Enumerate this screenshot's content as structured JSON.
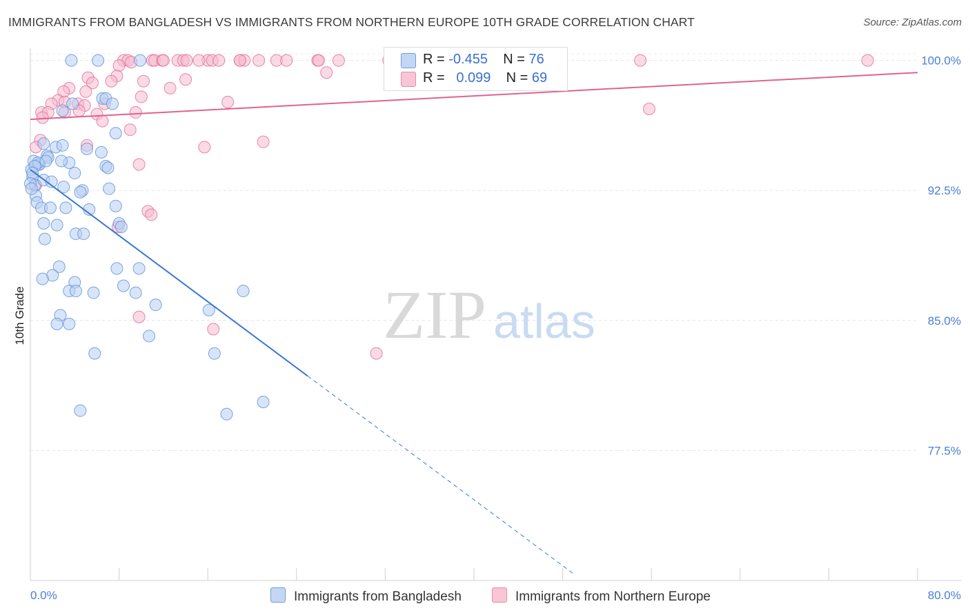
{
  "title": "IMMIGRANTS FROM BANGLADESH VS IMMIGRANTS FROM NORTHERN EUROPE 10TH GRADE CORRELATION CHART",
  "source": "Source: ZipAtlas.com",
  "watermark": {
    "zip": "ZIP",
    "atlas": "atlas"
  },
  "colors": {
    "blue": "#5b8fd9",
    "blue_fill": "#b8d0f2",
    "pink": "#e46a94",
    "pink_fill": "#f6bccd",
    "axis_text": "#4a7fd4"
  },
  "legend": {
    "rows": [
      {
        "r_label": "R =",
        "r_value": "-0.455",
        "n_label": "N =",
        "n_value": "76"
      },
      {
        "r_label": "R =",
        "r_value": "0.099",
        "n_label": "N =",
        "n_value": "69"
      }
    ]
  },
  "bottom_legend": {
    "series1": "Immigrants from Bangladesh",
    "series2": "Immigrants from Northern Europe"
  },
  "chart_data": {
    "type": "scatter",
    "title": "IMMIGRANTS FROM BANGLADESH VS IMMIGRANTS FROM NORTHERN EUROPE 10TH GRADE CORRELATION CHART",
    "xlabel": "",
    "ylabel": "10th Grade",
    "xlim": [
      0,
      80
    ],
    "ylim": [
      70,
      100.7
    ],
    "x_tick_labels": [
      "0.0%",
      "80.0%"
    ],
    "y_ticks": [
      77.5,
      85.0,
      92.5,
      100.0
    ],
    "y_tick_labels": [
      "77.5%",
      "85.0%",
      "92.5%",
      "100.0%"
    ],
    "series": [
      {
        "name": "Immigrants from Bangladesh",
        "r": -0.455,
        "n": 76,
        "trend": {
          "x0": 0,
          "y0": 93.7,
          "x1": 25,
          "y1": 81.8,
          "dash_to_x": 49
        },
        "points": [
          [
            3.7,
            100
          ],
          [
            6.1,
            100
          ],
          [
            9.9,
            100
          ],
          [
            0.1,
            93.7
          ],
          [
            0.3,
            94.2
          ],
          [
            0.2,
            93.3
          ],
          [
            0.4,
            92.8
          ],
          [
            0.8,
            94.0
          ],
          [
            1.2,
            95.2
          ],
          [
            1.5,
            94.5
          ],
          [
            2.3,
            95.0
          ],
          [
            2.9,
            95.1
          ],
          [
            0.5,
            92.2
          ],
          [
            0.6,
            91.8
          ],
          [
            1.0,
            91.5
          ],
          [
            1.8,
            91.5
          ],
          [
            3.2,
            91.5
          ],
          [
            4.0,
            93.5
          ],
          [
            1.2,
            90.6
          ],
          [
            2.4,
            90.5
          ],
          [
            1.3,
            89.7
          ],
          [
            4.1,
            90.0
          ],
          [
            4.8,
            90.0
          ],
          [
            4.7,
            92.5
          ],
          [
            4.5,
            92.4
          ],
          [
            5.3,
            91.4
          ],
          [
            6.8,
            93.9
          ],
          [
            7.0,
            93.8
          ],
          [
            7.1,
            92.6
          ],
          [
            7.7,
            91.6
          ],
          [
            8.0,
            90.6
          ],
          [
            8.2,
            90.4
          ],
          [
            6.5,
            97.8
          ],
          [
            6.8,
            97.8
          ],
          [
            7.4,
            97.5
          ],
          [
            3.8,
            97.5
          ],
          [
            2.9,
            97.1
          ],
          [
            7.7,
            95.8
          ],
          [
            6.4,
            94.7
          ],
          [
            0.8,
            94.0
          ],
          [
            1.6,
            94.4
          ],
          [
            3.5,
            94.1
          ],
          [
            2.8,
            94.2
          ],
          [
            1.2,
            93.1
          ],
          [
            1.9,
            93.0
          ],
          [
            3.0,
            92.7
          ],
          [
            0.7,
            94.1
          ],
          [
            0.4,
            93.9
          ],
          [
            0.2,
            93.5
          ],
          [
            7.8,
            88.0
          ],
          [
            9.8,
            88.0
          ],
          [
            2.6,
            88.1
          ],
          [
            2.0,
            87.6
          ],
          [
            1.1,
            87.4
          ],
          [
            4.0,
            87.2
          ],
          [
            3.5,
            86.7
          ],
          [
            4.1,
            86.7
          ],
          [
            8.4,
            87.0
          ],
          [
            5.7,
            86.6
          ],
          [
            9.5,
            86.6
          ],
          [
            19.2,
            86.7
          ],
          [
            11.3,
            85.9
          ],
          [
            16.1,
            85.6
          ],
          [
            2.7,
            85.3
          ],
          [
            3.5,
            84.8
          ],
          [
            2.4,
            84.8
          ],
          [
            10.7,
            84.1
          ],
          [
            5.8,
            83.1
          ],
          [
            16.6,
            83.1
          ],
          [
            4.5,
            79.8
          ],
          [
            17.7,
            79.6
          ],
          [
            21.0,
            80.3
          ],
          [
            0.0,
            92.9
          ],
          [
            0.1,
            92.6
          ],
          [
            1.4,
            94.2
          ],
          [
            5.1,
            94.9
          ]
        ]
      },
      {
        "name": "Immigrants from Northern Europe",
        "r": 0.099,
        "n": 69,
        "trend": {
          "x0": 0,
          "y0": 96.6,
          "x1": 80,
          "y1": 99.3
        },
        "points": [
          [
            8.4,
            100
          ],
          [
            8.8,
            100
          ],
          [
            11.0,
            100
          ],
          [
            11.2,
            100
          ],
          [
            11.9,
            100
          ],
          [
            12.0,
            100
          ],
          [
            13.3,
            100
          ],
          [
            13.8,
            100
          ],
          [
            14.1,
            100
          ],
          [
            16.0,
            100
          ],
          [
            16.4,
            100
          ],
          [
            17.0,
            100
          ],
          [
            18.9,
            100
          ],
          [
            19.3,
            100
          ],
          [
            20.6,
            100
          ],
          [
            22.2,
            100
          ],
          [
            23.1,
            100
          ],
          [
            25.9,
            100
          ],
          [
            26.0,
            100
          ],
          [
            27.8,
            100
          ],
          [
            32.3,
            100
          ],
          [
            55.0,
            100
          ],
          [
            75.5,
            100
          ],
          [
            18.9,
            100
          ],
          [
            15.2,
            100
          ],
          [
            9.1,
            99.9
          ],
          [
            8.0,
            99.7
          ],
          [
            7.8,
            99.1
          ],
          [
            26.7,
            99.3
          ],
          [
            5.2,
            99.0
          ],
          [
            5.6,
            98.7
          ],
          [
            7.3,
            98.8
          ],
          [
            10.2,
            98.8
          ],
          [
            12.6,
            98.4
          ],
          [
            14.0,
            98.9
          ],
          [
            3.5,
            98.4
          ],
          [
            5.0,
            98.2
          ],
          [
            3.0,
            98.2
          ],
          [
            10.0,
            97.9
          ],
          [
            2.5,
            97.7
          ],
          [
            3.1,
            97.6
          ],
          [
            1.9,
            97.5
          ],
          [
            4.3,
            97.5
          ],
          [
            4.9,
            97.4
          ],
          [
            6.7,
            97.5
          ],
          [
            17.8,
            97.6
          ],
          [
            55.8,
            97.2
          ],
          [
            1.0,
            97.0
          ],
          [
            1.6,
            97.0
          ],
          [
            3.1,
            97.0
          ],
          [
            4.4,
            97.1
          ],
          [
            9.5,
            97.0
          ],
          [
            6.0,
            96.9
          ],
          [
            6.5,
            96.5
          ],
          [
            1.1,
            96.7
          ],
          [
            9.0,
            96.0
          ],
          [
            0.9,
            95.4
          ],
          [
            0.5,
            95.0
          ],
          [
            5.1,
            95.1
          ],
          [
            15.7,
            95.0
          ],
          [
            21.0,
            95.3
          ],
          [
            9.8,
            94.0
          ],
          [
            0.5,
            92.8
          ],
          [
            10.6,
            91.3
          ],
          [
            10.9,
            91.1
          ],
          [
            7.9,
            90.4
          ],
          [
            9.8,
            85.2
          ],
          [
            16.5,
            84.5
          ],
          [
            31.2,
            83.1
          ]
        ]
      }
    ]
  }
}
